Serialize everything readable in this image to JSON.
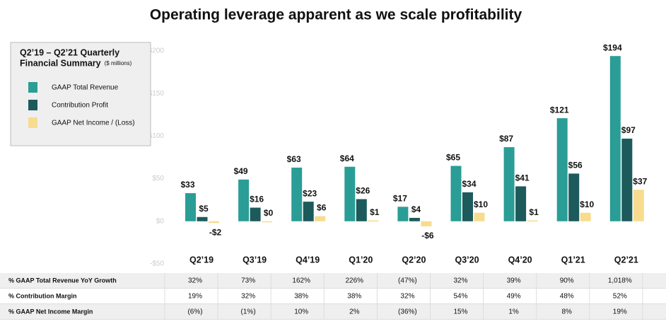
{
  "chart_data": {
    "type": "bar",
    "title": "Operating leverage apparent as we scale profitability",
    "legend_title": [
      "Q2’19 – Q2’21 Quarterly",
      "Financial Summary"
    ],
    "legend_subtitle": "($ millions)",
    "categories": [
      "Q2’19",
      "Q3’19",
      "Q4’19",
      "Q1’20",
      "Q2’20",
      "Q3’20",
      "Q4’20",
      "Q1’21",
      "Q2’21"
    ],
    "series": [
      {
        "name": "GAAP Total Revenue",
        "color": "#2a9d96",
        "values": [
          33,
          49,
          63,
          64,
          17,
          65,
          87,
          121,
          194
        ],
        "value_labels": [
          "$33",
          "$49",
          "$63",
          "$64",
          "$17",
          "$65",
          "$87",
          "$121",
          "$194"
        ]
      },
      {
        "name": "Contribution Profit",
        "color": "#1d5a5b",
        "values": [
          5,
          16,
          23,
          26,
          4,
          34,
          41,
          56,
          97
        ],
        "value_labels": [
          "$5",
          "$16",
          "$23",
          "$26",
          "$4",
          "$34",
          "$41",
          "$56",
          "$97"
        ]
      },
      {
        "name": "GAAP Net Income / (Loss)",
        "color": "#f7dc8f",
        "values": [
          -2,
          0,
          6,
          1,
          -6,
          10,
          1,
          10,
          37
        ],
        "value_labels": [
          "-$2",
          "$0",
          "$6",
          "$1",
          "-$6",
          "$10",
          "$1",
          "$10",
          "$37"
        ]
      }
    ],
    "ylim": [
      -50,
      200
    ],
    "yticks": [
      {
        "value": -50,
        "label": "-$50"
      },
      {
        "value": 0,
        "label": "$0"
      },
      {
        "value": 50,
        "label": "$50"
      },
      {
        "value": 100,
        "label": "$100"
      },
      {
        "value": 150,
        "label": "$150"
      },
      {
        "value": 200,
        "label": "$200"
      }
    ],
    "grid": false
  },
  "table": {
    "rows": [
      {
        "label": "% GAAP Total Revenue YoY Growth",
        "values": [
          "32%",
          "73%",
          "162%",
          "226%",
          "(47%)",
          "32%",
          "39%",
          "90%",
          "1,018%"
        ]
      },
      {
        "label": "% Contribution Margin",
        "values": [
          "19%",
          "32%",
          "38%",
          "38%",
          "32%",
          "54%",
          "49%",
          "48%",
          "52%"
        ]
      },
      {
        "label": "% GAAP Net Income Margin",
        "values": [
          "(6%)",
          "(1%)",
          "10%",
          "2%",
          "(36%)",
          "15%",
          "1%",
          "8%",
          "19%"
        ]
      }
    ]
  }
}
